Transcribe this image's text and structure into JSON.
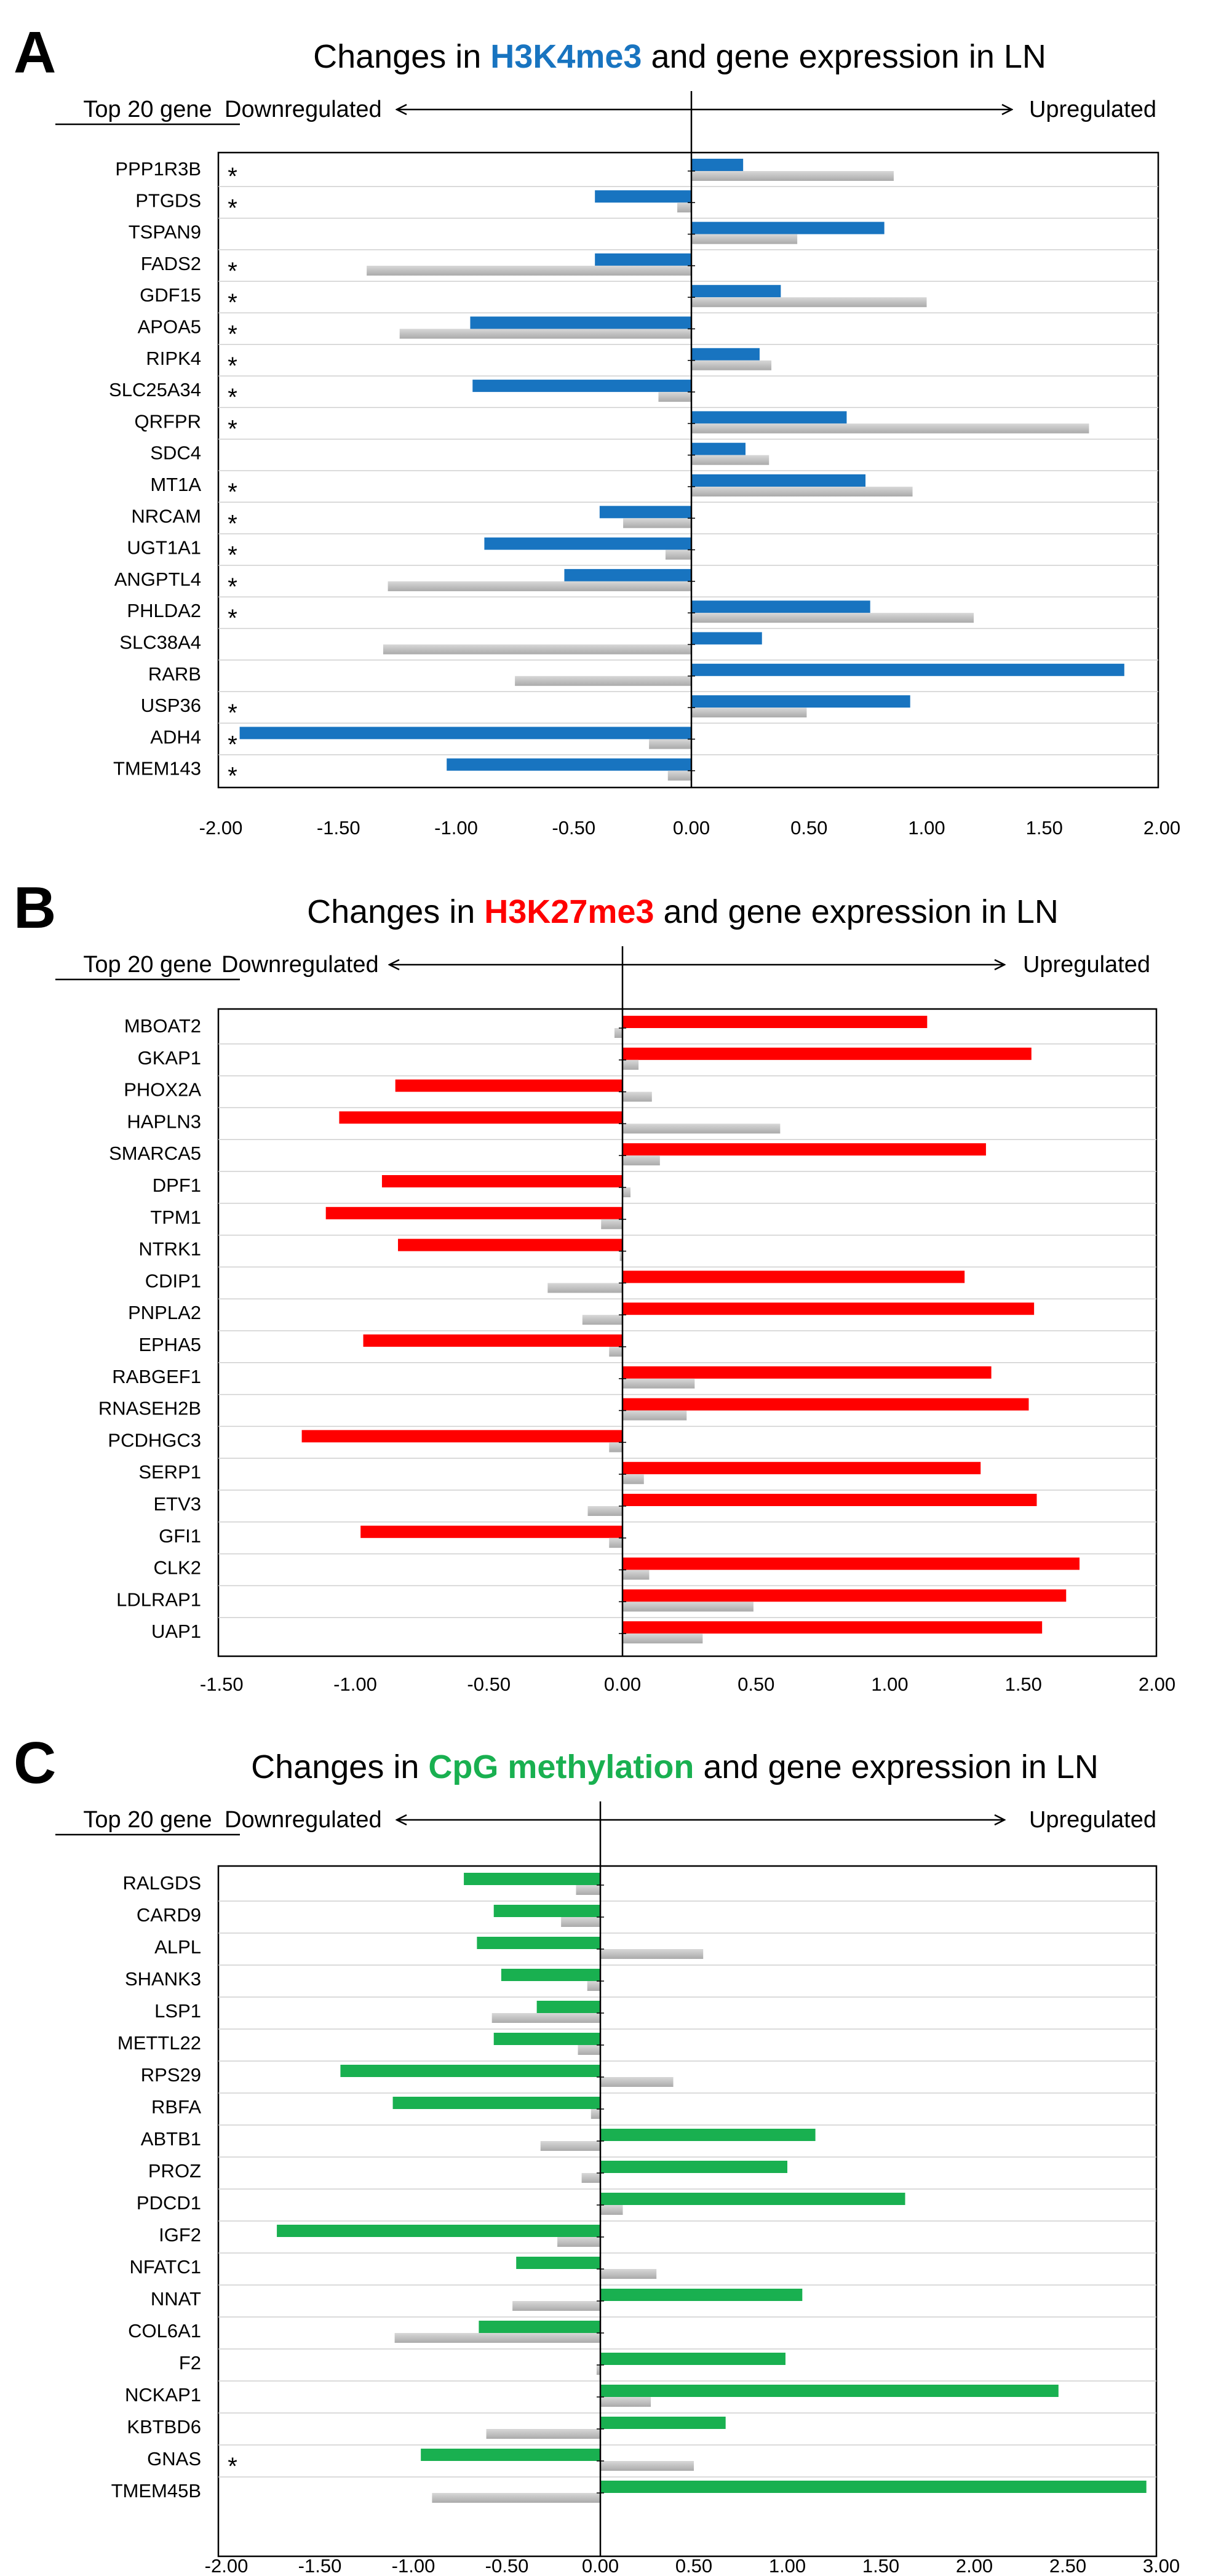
{
  "chart_data": [
    {
      "type": "bar",
      "panel": "A",
      "title_prefix": "Changes in ",
      "title_mark": "H3K4me3",
      "title_suffix": " and gene expression in LN",
      "mark_color": "#1874c0",
      "expr_color": "#aaaaaa",
      "header_genes": "Top 20 gene",
      "header_down": "Downregulated",
      "header_up": "Upregulated",
      "xlim": [
        -2.0,
        2.0
      ],
      "xticks": [
        "-2.00",
        "-1.50",
        "-1.00",
        "-0.50",
        "0.00",
        "0.50",
        "1.00",
        "1.50",
        "2.00"
      ],
      "xtick_values": [
        -2.0,
        -1.5,
        -1.0,
        -0.5,
        0.0,
        0.5,
        1.0,
        1.5,
        2.0
      ],
      "series": [
        {
          "name": "H3K4me3",
          "role": "mark"
        },
        {
          "name": "Gene expression",
          "role": "expression"
        }
      ],
      "genes": [
        "PPP1R3B",
        "PTGDS",
        "TSPAN9",
        "FADS2",
        "GDF15",
        "APOA5",
        "RIPK4",
        "SLC25A34",
        "QRFPR",
        "SDC4",
        "MT1A",
        "NRCAM",
        "UGT1A1",
        "ANGPTL4",
        "PHLDA2",
        "SLC38A4",
        "RARB",
        "USP36",
        "ADH4",
        "TMEM143"
      ],
      "mark_values": [
        0.22,
        -0.41,
        0.82,
        -0.41,
        0.38,
        -0.94,
        0.29,
        -0.93,
        0.66,
        0.23,
        0.74,
        -0.39,
        -0.88,
        -0.54,
        0.76,
        0.3,
        1.84,
        0.93,
        -1.92,
        -1.04
      ],
      "expr_values": [
        0.86,
        -0.06,
        0.45,
        -1.38,
        1.0,
        -1.24,
        0.34,
        -0.14,
        1.69,
        0.33,
        0.94,
        -0.29,
        -0.11,
        -1.29,
        1.2,
        -1.31,
        -0.75,
        0.49,
        -0.18,
        -0.1
      ],
      "stars": [
        true,
        true,
        false,
        true,
        true,
        true,
        true,
        true,
        true,
        false,
        true,
        true,
        true,
        true,
        true,
        false,
        false,
        true,
        true,
        true
      ],
      "star_symbol": "*"
    },
    {
      "type": "bar",
      "panel": "B",
      "title_prefix": "Changes in ",
      "title_mark": "H3K27me3",
      "title_suffix": " and gene expression in LN",
      "mark_color": "#ff0000",
      "expr_color": "#aaaaaa",
      "header_genes": "Top 20 gene",
      "header_down": "Downregulated",
      "header_up": "Upregulated",
      "xlim": [
        -1.5,
        2.0
      ],
      "xticks": [
        "-1.50",
        "-1.00",
        "-0.50",
        "0.00",
        "0.50",
        "1.00",
        "1.50",
        "2.00"
      ],
      "xtick_values": [
        -1.5,
        -1.0,
        -0.5,
        0.0,
        0.5,
        1.0,
        1.5,
        2.0
      ],
      "series": [
        {
          "name": "H3K27me3",
          "role": "mark"
        },
        {
          "name": "Gene expression",
          "role": "expression"
        }
      ],
      "genes": [
        "MBOAT2",
        "GKAP1",
        "PHOX2A",
        "HAPLN3",
        "SMARCA5",
        "DPF1",
        "TPM1",
        "NTRK1",
        "CDIP1",
        "PNPLA2",
        "EPHA5",
        "RABGEF1",
        "RNASEH2B",
        "PCDHGC3",
        "SERP1",
        "ETV3",
        "GFI1",
        "CLK2",
        "LDLRAP1",
        "UAP1"
      ],
      "mark_values": [
        1.14,
        1.53,
        -0.85,
        -1.06,
        1.36,
        -0.9,
        -1.11,
        -0.84,
        1.28,
        1.54,
        -0.97,
        1.38,
        1.52,
        -1.2,
        1.34,
        1.55,
        -0.98,
        1.71,
        1.66,
        1.57
      ],
      "expr_values": [
        -0.03,
        0.06,
        0.11,
        0.59,
        0.14,
        0.03,
        -0.08,
        -0.01,
        -0.28,
        -0.15,
        -0.05,
        0.27,
        0.24,
        -0.05,
        0.08,
        -0.13,
        -0.05,
        0.1,
        0.49,
        0.3
      ],
      "stars": [
        false,
        false,
        false,
        false,
        false,
        false,
        false,
        false,
        false,
        false,
        false,
        false,
        false,
        false,
        false,
        false,
        false,
        false,
        false,
        false
      ],
      "star_symbol": "*"
    },
    {
      "type": "bar",
      "panel": "C",
      "title_prefix": "Changes in ",
      "title_mark": "CpG methylation",
      "title_suffix": " and gene expression in LN",
      "mark_color": "#19b050",
      "expr_color": "#aaaaaa",
      "header_genes": "Top 20 gene",
      "header_down": "Downregulated",
      "header_up": "Upregulated",
      "xlim": [
        -2.0,
        3.0
      ],
      "xticks": [
        "-2.00",
        "-1.50",
        "-1.00",
        "-0.50",
        "0.00",
        "0.50",
        "1.00",
        "1.50",
        "2.00",
        "2.50",
        "3.00"
      ],
      "xtick_values": [
        -2.0,
        -1.5,
        -1.0,
        -0.5,
        0.0,
        0.5,
        1.0,
        1.5,
        2.0,
        2.5,
        3.0
      ],
      "series": [
        {
          "name": "CpG methylation",
          "role": "mark"
        },
        {
          "name": "Gene expression",
          "role": "expression"
        }
      ],
      "genes": [
        "RALGDS",
        "CARD9",
        "ALPL",
        "SHANK3",
        "LSP1",
        "METTL22",
        "RPS29",
        "RBFA",
        "ABTB1",
        "PROZ",
        "PDCD1",
        "IGF2",
        "NFATC1",
        "NNAT",
        "COL6A1",
        "F2",
        "NCKAP1",
        "KBTBD6",
        "GNAS",
        "TMEM45B"
      ],
      "mark_values": [
        -0.73,
        -0.57,
        -0.66,
        -0.53,
        -0.34,
        -0.57,
        -1.39,
        -1.11,
        1.15,
        1.0,
        1.63,
        -1.73,
        -0.45,
        1.08,
        -0.65,
        0.99,
        2.45,
        0.67,
        -0.96,
        2.92
      ],
      "expr_values": [
        -0.13,
        -0.21,
        0.55,
        -0.07,
        -0.58,
        -0.12,
        0.39,
        -0.05,
        -0.32,
        -0.1,
        0.12,
        -0.23,
        0.3,
        -0.47,
        -1.1,
        -0.02,
        0.27,
        -0.61,
        0.5,
        -0.9
      ],
      "stars": [
        false,
        false,
        false,
        false,
        false,
        false,
        false,
        false,
        false,
        false,
        false,
        false,
        false,
        false,
        false,
        false,
        false,
        false,
        true,
        false
      ],
      "star_symbol": "*"
    }
  ]
}
